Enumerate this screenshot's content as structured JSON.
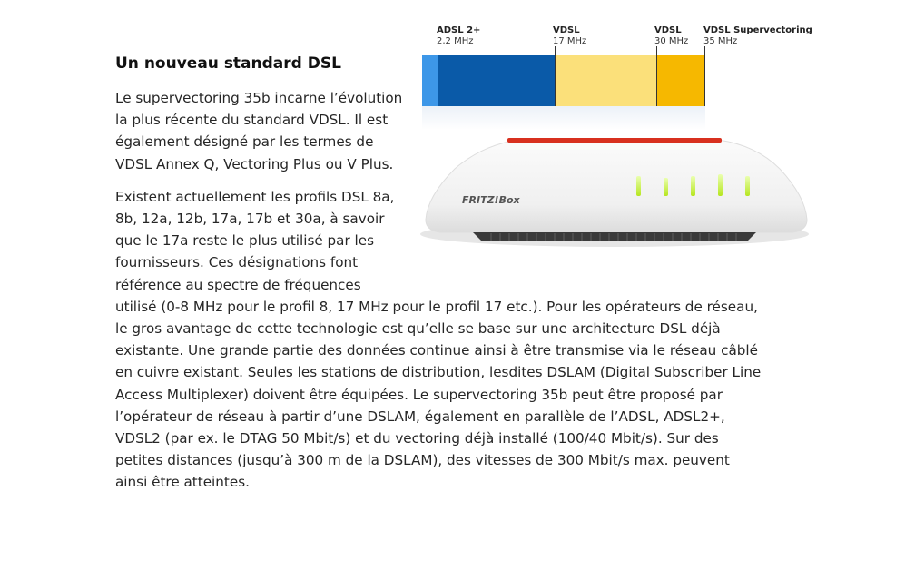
{
  "article": {
    "title": "Un nouveau standard DSL",
    "paragraph1": "Le supervectoring 35b incarne l’évolution la plus récente du standard VDSL. Il est également désigné par les termes de VDSL Annex Q, Vectoring Plus ou V Plus.",
    "paragraph2": "Existent actuellement les profils DSL 8a, 8b, 12a, 12b, 17a, 17b et 30a, à savoir que le 17a reste le plus utilisé par les fournisseurs. Ces désignations font référence au spectre de fréquences utilisé (0-8 MHz pour le profil 8, 17 MHz pour le profil 17 etc.). Pour les opérateurs de réseau, le gros avantage de cette technologie est qu’elle se base sur une architecture DSL déjà existante. Une grande partie des données continue ainsi à être transmise via le réseau câblé en cuivre existant. Seules les stations de distribution, lesdites DSLAM (Digital Subscriber Line Access Multiplexer) doivent être équipées. Le supervectoring 35b peut être proposé par l’opérateur de réseau à partir d’une DSLAM, également en parallèle de l’ADSL, ADSL2+, VDSL2 (par ex. le DTAG 50 Mbit/s) et du vectoring déjà installé (100/40 Mbit/s). Sur des petites distances (jusqu’à 300 m de la DSLAM), des vitesses de 300 Mbit/s max. peuvent ainsi être atteintes."
  },
  "figure": {
    "bands": [
      {
        "name": "ADSL 2+",
        "freq": "2,2 MHz"
      },
      {
        "name": "VDSL",
        "freq": "17 MHz"
      },
      {
        "name": "VDSL",
        "freq": "30 MHz"
      },
      {
        "name": "VDSL Supervectoring",
        "freq": "35 MHz"
      }
    ],
    "colors": {
      "low_band": "#3d97e8",
      "adsl": "#0a5aa8",
      "vdsl17": "#fbe07a",
      "vdsl30": "#f6b800"
    },
    "router": {
      "brand": "FRITZ!Box",
      "icon": "fritzbox-router-icon"
    }
  }
}
